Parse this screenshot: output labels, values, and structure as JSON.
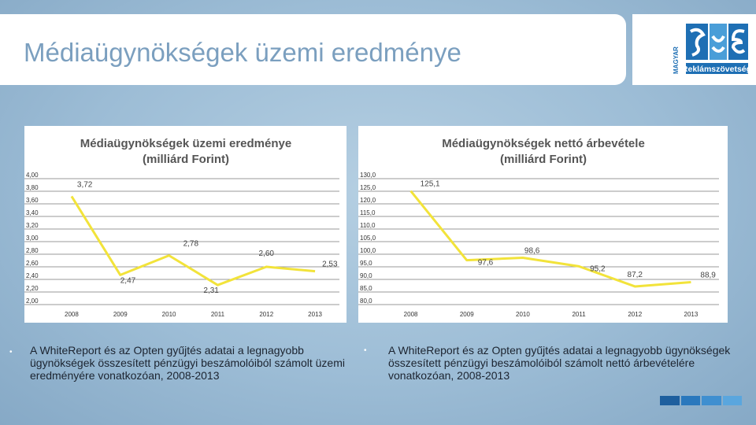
{
  "slide": {
    "title": "Médiaügynökségek üzemi eredménye"
  },
  "logo": {
    "vertical_text": "MAGYAR",
    "name": "Reklámszövetség",
    "colors": [
      "#1e6fb4",
      "#4a9ed8"
    ]
  },
  "chart_data": [
    {
      "type": "line",
      "title": "Médiaügynökségek üzemi eredménye",
      "subtitle": "(milliárd Forint)",
      "categories": [
        "2008",
        "2009",
        "2010",
        "2011",
        "2012",
        "2013"
      ],
      "series": [
        {
          "values": [
            3.72,
            2.47,
            2.78,
            2.31,
            2.6,
            2.53
          ],
          "labels": [
            "3,72",
            "2,47",
            "2,78",
            "2,31",
            "2,60",
            "2,53"
          ]
        }
      ],
      "yticks": [
        "2,00",
        "2,20",
        "2,40",
        "2,60",
        "2,80",
        "3,00",
        "3,20",
        "3,40",
        "3,60",
        "3,80",
        "4,00"
      ],
      "ylim": [
        2.0,
        4.0
      ],
      "grid": true,
      "color": "#f2e33a"
    },
    {
      "type": "line",
      "title": "Médiaügynökségek nettó árbevétele",
      "subtitle": "(milliárd Forint)",
      "categories": [
        "2008",
        "2009",
        "2010",
        "2011",
        "2012",
        "2013"
      ],
      "series": [
        {
          "values": [
            125.1,
            97.6,
            98.6,
            95.2,
            87.2,
            88.9
          ],
          "labels": [
            "125,1",
            "97,6",
            "98,6",
            "95,2",
            "87,2",
            "88,9"
          ]
        }
      ],
      "yticks": [
        "80,0",
        "85,0",
        "90,0",
        "95,0",
        "100,0",
        "105,0",
        "110,0",
        "115,0",
        "120,0",
        "125,0",
        "130,0"
      ],
      "ylim": [
        80,
        130
      ],
      "grid": true,
      "color": "#f2e33a"
    }
  ],
  "notes": [
    {
      "bullet": "•",
      "text": "A WhiteReport és az Opten gyűjtés adatai a legnagyobb ügynökségek összesített pénzügyi  beszámolóiból számolt üzemi eredményére vonatkozóan, 2008-2013"
    },
    {
      "bullet": "•",
      "text": "A WhiteReport és az Opten gyűjtés adatai a legnagyobb ügynökségek összesített pénzügyi beszámolóiból számolt nettó árbevételére vonatkozóan, 2008-2013"
    }
  ],
  "footer_colors": [
    "#1e5f9e",
    "#2a78bd",
    "#3f8fd0",
    "#5aa6de"
  ]
}
